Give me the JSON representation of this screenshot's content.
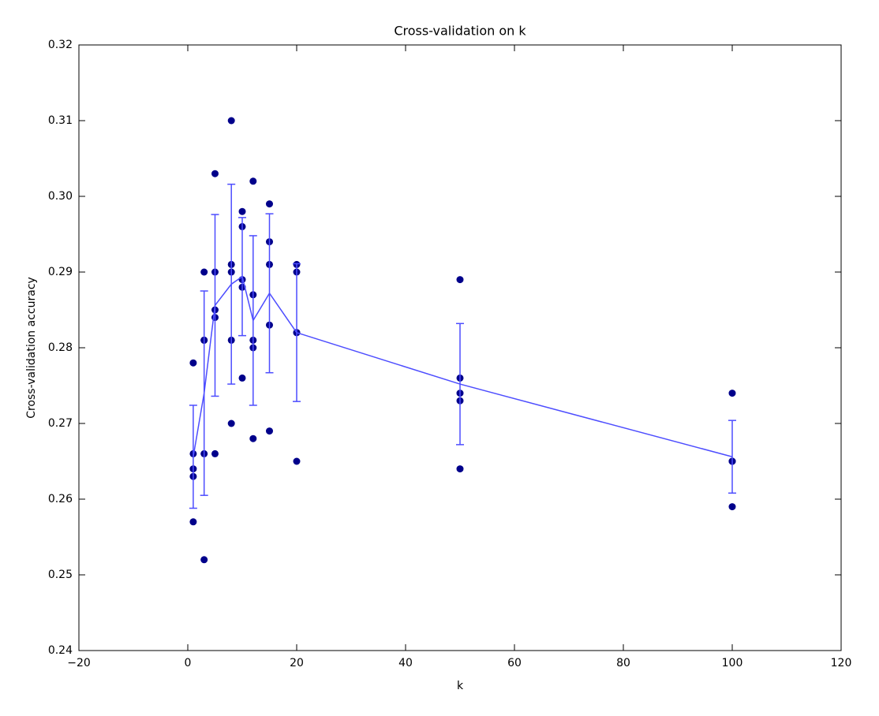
{
  "chart_data": {
    "type": "scatter",
    "title": "Cross-validation on k",
    "x_label": "k",
    "y_label": "Cross-validation accuracy",
    "x": [
      1,
      1,
      1,
      1,
      1,
      3,
      3,
      3,
      3,
      3,
      5,
      5,
      5,
      5,
      5,
      8,
      8,
      8,
      8,
      8,
      10,
      10,
      10,
      10,
      10,
      12,
      12,
      12,
      12,
      12,
      15,
      15,
      15,
      15,
      15,
      20,
      20,
      20,
      20,
      20,
      50,
      50,
      50,
      50,
      50,
      100,
      100,
      100,
      100,
      100
    ],
    "values": [
      0.278,
      0.266,
      0.264,
      0.263,
      0.257,
      0.29,
      0.281,
      0.281,
      0.266,
      0.252,
      0.303,
      0.29,
      0.285,
      0.284,
      0.266,
      0.31,
      0.291,
      0.29,
      0.281,
      0.27,
      0.298,
      0.296,
      0.289,
      0.288,
      0.276,
      0.302,
      0.287,
      0.28,
      0.281,
      0.268,
      0.299,
      0.294,
      0.291,
      0.283,
      0.269,
      0.291,
      0.29,
      0.282,
      0.282,
      0.265,
      0.289,
      0.276,
      0.274,
      0.273,
      0.264,
      0.274,
      0.265,
      0.265,
      0.265,
      0.259
    ],
    "color": "#00008b",
    "errorbar": {
      "x": [
        1,
        3,
        5,
        8,
        10,
        12,
        15,
        20,
        50,
        100
      ],
      "values": [
        0.2656,
        0.274,
        0.2856,
        0.2884,
        0.2894,
        0.2836,
        0.2872,
        0.282,
        0.2752,
        0.2656
      ],
      "errors": [
        0.0068,
        0.0135,
        0.012,
        0.0132,
        0.0078,
        0.0112,
        0.0105,
        0.0091,
        0.008,
        0.0048
      ],
      "color": "#4d4dff"
    },
    "xlim": [
      -20,
      120
    ],
    "xticks": [
      {
        "value": -20,
        "label": "−20"
      },
      0,
      20,
      40,
      60,
      80,
      100,
      120
    ],
    "ylim": [
      0.24,
      0.32
    ],
    "yticks": [
      0.24,
      0.25,
      0.26,
      0.27,
      0.28,
      0.29,
      {
        "value": 0.3,
        "label": "0.30"
      },
      0.31,
      0.32
    ],
    "grid": false
  }
}
